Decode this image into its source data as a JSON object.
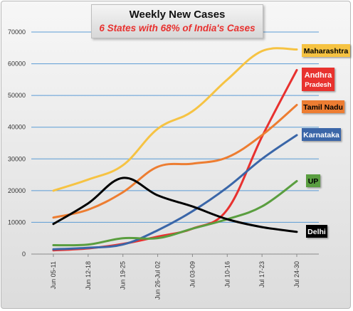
{
  "chart_data": {
    "type": "line",
    "title": "Weekly New Cases",
    "subtitle": "6 States with 68% of India's Cases",
    "x": [
      "Jun 05-11",
      "Jun 12-18",
      "Jun 19-25",
      "Jun 26-Jul 02",
      "Jul 03-09",
      "Jul 10-16",
      "Jul 17-23",
      "Jul 24-30"
    ],
    "ylim": [
      0,
      70000
    ],
    "yticks": [
      "0",
      "10000",
      "20000",
      "30000",
      "40000",
      "50000",
      "60000",
      "70000"
    ],
    "xlabel": "",
    "ylabel": "",
    "grid": true,
    "series": [
      {
        "name": "Maharashtra",
        "color": "#f6c343",
        "values": [
          20000,
          23500,
          28000,
          39500,
          45000,
          55000,
          64000,
          64500
        ],
        "label_lines": [
          "Maharashtra"
        ]
      },
      {
        "name": "Andhra Pradesh",
        "color": "#e8312f",
        "values": [
          1200,
          1800,
          3200,
          5500,
          8000,
          14000,
          37000,
          58000
        ],
        "label_lines": [
          "Andhra",
          "Pradesh"
        ]
      },
      {
        "name": "Tamil Nadu",
        "color": "#ed7d31",
        "values": [
          11500,
          14000,
          19500,
          27500,
          28500,
          30500,
          37500,
          47000
        ],
        "label_lines": [
          "Tamil Nadu"
        ]
      },
      {
        "name": "Karnataka",
        "color": "#3a66a8",
        "values": [
          1500,
          2000,
          3000,
          7500,
          13500,
          21000,
          30000,
          37500
        ],
        "label_lines": [
          "Karnataka"
        ]
      },
      {
        "name": "UP",
        "color": "#5a9e3f",
        "values": [
          2800,
          3000,
          5000,
          5000,
          8000,
          11000,
          15000,
          23000
        ],
        "label_lines": [
          "UP"
        ]
      },
      {
        "name": "Delhi",
        "color": "#000000",
        "values": [
          9500,
          16000,
          24000,
          18500,
          15000,
          11000,
          8500,
          7000
        ],
        "label_lines": [
          "Delhi"
        ]
      }
    ]
  }
}
